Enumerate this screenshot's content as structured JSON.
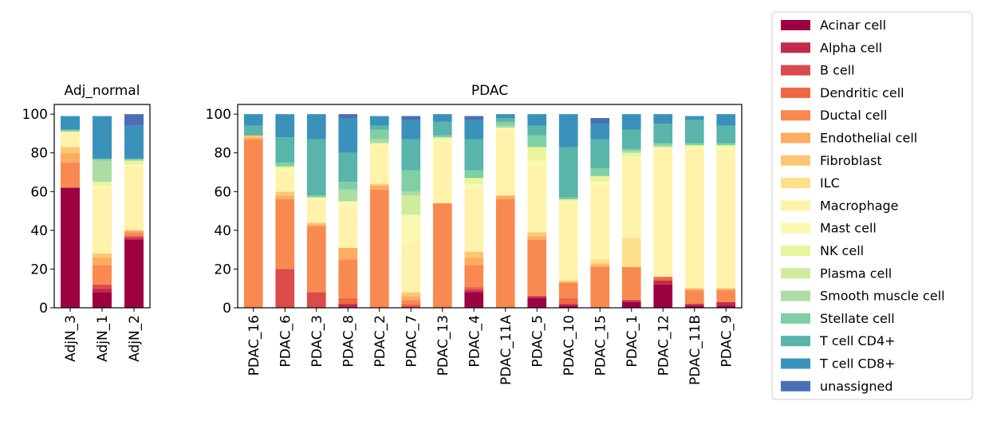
{
  "colors": {
    "Acinar cell": "#9e0142",
    "Alpha cell": "#c2294a",
    "B cell": "#dd4a4c",
    "Dendritic cell": "#f06744",
    "Ductal cell": "#f88950",
    "Endothelial cell": "#fdac60",
    "Fibroblast": "#fdc775",
    "ILC": "#fee08b",
    "Macrophage": "#fff3ab",
    "Mast cell": "#fbf8b0",
    "NK cell": "#e9f59c",
    "Plasma cell": "#cfec9e",
    "Smooth muscle cell": "#abdda4",
    "Stellate cell": "#81cfa5",
    "T cell CD4+": "#59b4aa",
    "T cell CD8+": "#3a92bb",
    "unassigned": "#4a6fb4"
  },
  "chart_data": [
    {
      "type": "bar",
      "stacked": true,
      "title": "Adj_normal",
      "categories": [
        "AdjN_3",
        "AdjN_1",
        "AdjN_2"
      ],
      "ylim": [
        0,
        105
      ],
      "yticks": [
        0,
        20,
        40,
        60,
        80,
        100
      ],
      "legend": "right",
      "series": [
        {
          "name": "Acinar cell",
          "values": [
            62,
            8,
            35
          ]
        },
        {
          "name": "Alpha cell",
          "values": [
            0,
            2,
            1
          ]
        },
        {
          "name": "B cell",
          "values": [
            0,
            2,
            1
          ]
        },
        {
          "name": "Dendritic cell",
          "values": [
            0,
            0,
            0
          ]
        },
        {
          "name": "Ductal cell",
          "values": [
            13,
            10,
            2
          ]
        },
        {
          "name": "Endothelial cell",
          "values": [
            5,
            4,
            1
          ]
        },
        {
          "name": "Fibroblast",
          "values": [
            3,
            2,
            0
          ]
        },
        {
          "name": "ILC",
          "values": [
            0,
            0,
            0
          ]
        },
        {
          "name": "Macrophage",
          "values": [
            8,
            34,
            33
          ]
        },
        {
          "name": "Mast cell",
          "values": [
            0,
            1,
            1
          ]
        },
        {
          "name": "NK cell",
          "values": [
            0,
            2,
            2
          ]
        },
        {
          "name": "Plasma cell",
          "values": [
            0,
            0,
            0
          ]
        },
        {
          "name": "Smooth muscle cell",
          "values": [
            0,
            11,
            0
          ]
        },
        {
          "name": "Stellate cell",
          "values": [
            1,
            1,
            1
          ]
        },
        {
          "name": "T cell CD4+",
          "values": [
            0,
            0,
            0
          ]
        },
        {
          "name": "T cell CD8+",
          "values": [
            7,
            22,
            17
          ]
        },
        {
          "name": "unassigned",
          "values": [
            0,
            0,
            6
          ]
        }
      ]
    },
    {
      "type": "bar",
      "stacked": true,
      "title": "PDAC",
      "categories": [
        "PDAC_16",
        "PDAC_6",
        "PDAC_3",
        "PDAC_8",
        "PDAC_2",
        "PDAC_7",
        "PDAC_13",
        "PDAC_4",
        "PDAC_11A",
        "PDAC_5",
        "PDAC_10",
        "PDAC_15",
        "PDAC_1",
        "PDAC_12",
        "PDAC_11B",
        "PDAC_9"
      ],
      "ylim": [
        0,
        105
      ],
      "yticks": [
        0,
        20,
        40,
        60,
        80,
        100
      ],
      "series": [
        {
          "name": "Acinar cell",
          "values": [
            0,
            0,
            0,
            0,
            0,
            0,
            0,
            8,
            0,
            5,
            1,
            0,
            3,
            12,
            1,
            1
          ]
        },
        {
          "name": "Alpha cell",
          "values": [
            0,
            0,
            0,
            2,
            0,
            0,
            0,
            1,
            0,
            1,
            1,
            0,
            1,
            2,
            1,
            2
          ]
        },
        {
          "name": "B cell",
          "values": [
            0,
            20,
            8,
            0,
            0,
            1,
            0,
            1,
            0,
            0,
            0,
            0,
            0,
            0,
            0,
            0
          ]
        },
        {
          "name": "Dendritic cell",
          "values": [
            0,
            0,
            0,
            3,
            0,
            1,
            0,
            1,
            0,
            0,
            3,
            0,
            0,
            2,
            0,
            0
          ]
        },
        {
          "name": "Ductal cell",
          "values": [
            87,
            36,
            34,
            20,
            61,
            2,
            54,
            11,
            56,
            29,
            8,
            21,
            17,
            0,
            7,
            6
          ]
        },
        {
          "name": "Endothelial cell",
          "values": [
            1,
            2,
            1,
            6,
            2,
            2,
            0,
            4,
            2,
            2,
            0,
            1,
            0,
            0,
            1,
            1
          ]
        },
        {
          "name": "Fibroblast",
          "values": [
            1,
            2,
            1,
            0,
            1,
            2,
            0,
            3,
            0,
            2,
            1,
            1,
            0,
            0,
            0,
            0
          ]
        },
        {
          "name": "ILC",
          "values": [
            0,
            0,
            0,
            0,
            0,
            0,
            0,
            0,
            0,
            0,
            0,
            2,
            15,
            0,
            0,
            0
          ]
        },
        {
          "name": "Macrophage",
          "values": [
            0,
            10,
            12,
            20,
            20,
            26,
            32,
            32,
            34,
            35,
            40,
            38,
            41,
            66,
            72,
            72
          ]
        },
        {
          "name": "Mast cell",
          "values": [
            0,
            2,
            1,
            4,
            1,
            14,
            1,
            3,
            1,
            2,
            1,
            2,
            1,
            1,
            1,
            1
          ]
        },
        {
          "name": "NK cell",
          "values": [
            0,
            1,
            0,
            0,
            0,
            0,
            1,
            3,
            0,
            7,
            1,
            3,
            2,
            0,
            1,
            1
          ]
        },
        {
          "name": "Plasma cell",
          "values": [
            0,
            0,
            0,
            0,
            0,
            10,
            0,
            0,
            0,
            0,
            0,
            0,
            0,
            0,
            0,
            0
          ]
        },
        {
          "name": "Smooth muscle cell",
          "values": [
            0,
            0,
            0,
            6,
            2,
            2,
            0,
            0,
            1,
            0,
            0,
            0,
            1,
            1,
            0,
            0
          ]
        },
        {
          "name": "Stellate cell",
          "values": [
            0,
            2,
            1,
            4,
            5,
            11,
            1,
            4,
            2,
            6,
            1,
            4,
            1,
            1,
            1,
            1
          ]
        },
        {
          "name": "T cell CD4+",
          "values": [
            5,
            13,
            29,
            15,
            2,
            16,
            7,
            16,
            2,
            5,
            26,
            15,
            10,
            10,
            12,
            9
          ]
        },
        {
          "name": "T cell CD8+",
          "values": [
            6,
            12,
            13,
            18,
            5,
            10,
            4,
            10,
            2,
            6,
            17,
            8,
            8,
            5,
            2,
            6
          ]
        },
        {
          "name": "unassigned",
          "values": [
            0,
            0,
            0,
            2,
            0,
            2,
            0,
            2,
            0,
            0,
            0,
            3,
            0,
            0,
            0,
            0
          ]
        }
      ]
    }
  ]
}
